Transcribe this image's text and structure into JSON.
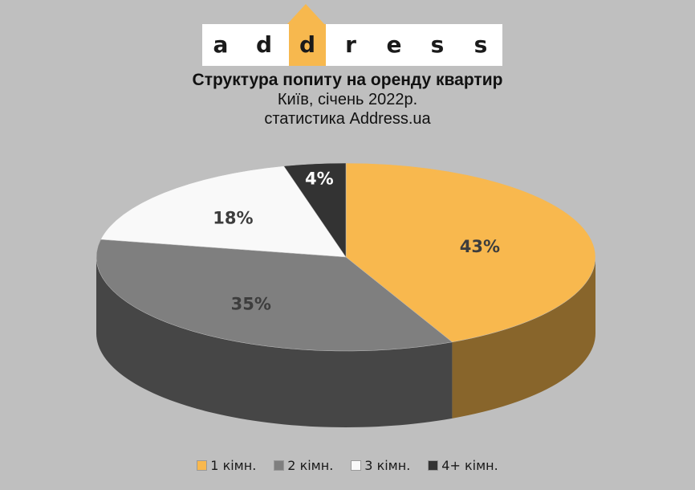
{
  "logo": {
    "letters": [
      "a",
      "d",
      "d",
      "r",
      "e",
      "s",
      "s"
    ],
    "highlight_index": 2,
    "accent_color": "#f7b84e"
  },
  "chart_data": {
    "type": "pie",
    "title": "Структура попиту на оренду квартир",
    "subtitle_lines": [
      "Київ, січень 2022р.",
      "статистика  Address.ua"
    ],
    "categories": [
      "1 кімн.",
      "2 кімн.",
      "3 кімн.",
      "4+ кімн."
    ],
    "values": [
      43,
      35,
      18,
      4
    ],
    "value_labels": [
      "43%",
      "35%",
      "18%",
      "4%"
    ],
    "colors": [
      "#f8b84e",
      "#7f7f7f",
      "#f9f9f9",
      "#333333"
    ],
    "style": "3d",
    "legend_position": "bottom"
  }
}
